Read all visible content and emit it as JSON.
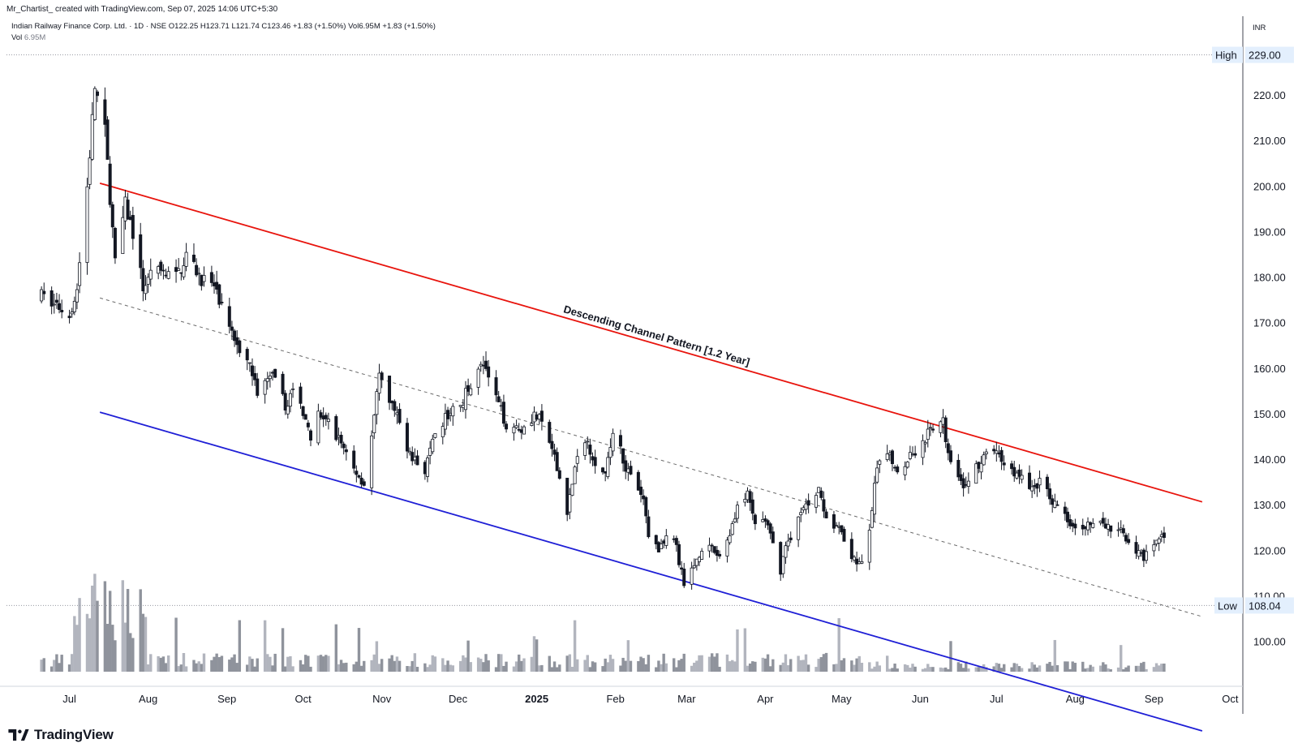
{
  "header": {
    "credit": "Mr_Chartist_ created with TradingView.com, Sep 07, 2025 14:06 UTC+5:30"
  },
  "legend": {
    "symbol": "Indian Railway Finance Corp. Ltd. · 1D · NSE",
    "open": "O122.25",
    "high": "H123.71",
    "low": "L121.74",
    "close": "C123.46",
    "change": "+1.83 (+1.50%)",
    "volume": "Vol6.95M",
    "vol_change": "+1.83 (+1.50%)",
    "vol_label": "Vol",
    "vol_value": "6.95M"
  },
  "axis": {
    "currency": "INR",
    "y_ticks": [
      "100.00",
      "110.00",
      "120.00",
      "130.00",
      "140.00",
      "150.00",
      "160.00",
      "170.00",
      "180.00",
      "190.00",
      "200.00",
      "210.00",
      "220.00"
    ],
    "x_ticks": [
      "Jul",
      "Aug",
      "Sep",
      "Oct",
      "Nov",
      "Dec",
      "2025",
      "Feb",
      "Mar",
      "Apr",
      "May",
      "Jun",
      "Jul",
      "Aug",
      "Sep",
      "Oct"
    ]
  },
  "markers": {
    "high_label": "High",
    "high_value": "229.00",
    "low_label": "Low",
    "low_value": "108.04"
  },
  "annotation": "Descending Channel Pattern [1.2 Year]",
  "watermark": "TradingView",
  "colors": {
    "upper_channel": "#e8140d",
    "lower_channel": "#1f1fd6",
    "mid_channel": "#6b6b6b",
    "candle": "#131722",
    "volume_bar": "#a9a9a9",
    "high_low_label_bg": "#e3effd"
  },
  "chart_data": {
    "type": "candlestick",
    "title": "Indian Railway Finance Corp. Ltd. · 1D · NSE",
    "ylim": [
      93.5,
      230
    ],
    "x_range": [
      "2024-06-19",
      "2025-10-06"
    ],
    "last_ohlc": {
      "open": 122.25,
      "high": 123.71,
      "low": 121.74,
      "close": 123.46
    },
    "extremes": {
      "high": 229.0,
      "low": 108.04
    },
    "price_path": [
      [
        "2024-06-20",
        176
      ],
      [
        "2024-06-26",
        174
      ],
      [
        "2024-07-01",
        172
      ],
      [
        "2024-07-04",
        178
      ],
      [
        "2024-07-08",
        200
      ],
      [
        "2024-07-11",
        222
      ],
      [
        "2024-07-15",
        212
      ],
      [
        "2024-07-17",
        198
      ],
      [
        "2024-07-19",
        183
      ],
      [
        "2024-07-23",
        196
      ],
      [
        "2024-07-26",
        190
      ],
      [
        "2024-07-30",
        178
      ],
      [
        "2024-08-05",
        182
      ],
      [
        "2024-08-12",
        180
      ],
      [
        "2024-08-16",
        185
      ],
      [
        "2024-08-22",
        180
      ],
      [
        "2024-08-27",
        178
      ],
      [
        "2024-09-02",
        168
      ],
      [
        "2024-09-09",
        163
      ],
      [
        "2024-09-13",
        155
      ],
      [
        "2024-09-19",
        158
      ],
      [
        "2024-09-24",
        152
      ],
      [
        "2024-09-27",
        155
      ],
      [
        "2024-10-02",
        150
      ],
      [
        "2024-10-04",
        143
      ],
      [
        "2024-10-07",
        150
      ],
      [
        "2024-10-11",
        148
      ],
      [
        "2024-10-15",
        145
      ],
      [
        "2024-10-21",
        138
      ],
      [
        "2024-10-25",
        135
      ],
      [
        "2024-10-28",
        145
      ],
      [
        "2024-10-31",
        158
      ],
      [
        "2024-11-05",
        152
      ],
      [
        "2024-11-08",
        148
      ],
      [
        "2024-11-13",
        140
      ],
      [
        "2024-11-18",
        138
      ],
      [
        "2024-11-22",
        145
      ],
      [
        "2024-11-27",
        150
      ],
      [
        "2024-12-02",
        152
      ],
      [
        "2024-12-06",
        157
      ],
      [
        "2024-12-10",
        162
      ],
      [
        "2024-12-13",
        158
      ],
      [
        "2024-12-17",
        152
      ],
      [
        "2024-12-20",
        148
      ],
      [
        "2024-12-26",
        147
      ],
      [
        "2024-12-31",
        150
      ],
      [
        "2025-01-03",
        148
      ],
      [
        "2025-01-06",
        144
      ],
      [
        "2025-01-10",
        136
      ],
      [
        "2025-01-13",
        129
      ],
      [
        "2025-01-16",
        138
      ],
      [
        "2025-01-20",
        145
      ],
      [
        "2025-01-24",
        140
      ],
      [
        "2025-01-28",
        136
      ],
      [
        "2025-02-01",
        150
      ],
      [
        "2025-02-04",
        140
      ],
      [
        "2025-02-07",
        136
      ],
      [
        "2025-02-12",
        131
      ],
      [
        "2025-02-14",
        124
      ],
      [
        "2025-02-18",
        120
      ],
      [
        "2025-02-21",
        124
      ],
      [
        "2025-02-25",
        121
      ],
      [
        "2025-02-28",
        112
      ],
      [
        "2025-03-04",
        117
      ],
      [
        "2025-03-07",
        121
      ],
      [
        "2025-03-11",
        120
      ],
      [
        "2025-03-14",
        119
      ],
      [
        "2025-03-18",
        124
      ],
      [
        "2025-03-21",
        130
      ],
      [
        "2025-03-25",
        132
      ],
      [
        "2025-03-28",
        126
      ],
      [
        "2025-04-01",
        127
      ],
      [
        "2025-04-04",
        121
      ],
      [
        "2025-04-07",
        116
      ],
      [
        "2025-04-09",
        121
      ],
      [
        "2025-04-14",
        127
      ],
      [
        "2025-04-17",
        130
      ],
      [
        "2025-04-22",
        134
      ],
      [
        "2025-04-25",
        128
      ],
      [
        "2025-04-29",
        125
      ],
      [
        "2025-05-02",
        123
      ],
      [
        "2025-05-06",
        118
      ],
      [
        "2025-05-09",
        117
      ],
      [
        "2025-05-12",
        125
      ],
      [
        "2025-05-15",
        138
      ],
      [
        "2025-05-19",
        142
      ],
      [
        "2025-05-23",
        138
      ],
      [
        "2025-05-28",
        141
      ],
      [
        "2025-06-02",
        144
      ],
      [
        "2025-06-06",
        147
      ],
      [
        "2025-06-10",
        148
      ],
      [
        "2025-06-12",
        142
      ],
      [
        "2025-06-16",
        137
      ],
      [
        "2025-06-19",
        134
      ],
      [
        "2025-06-23",
        138
      ],
      [
        "2025-06-27",
        141
      ],
      [
        "2025-07-01",
        142
      ],
      [
        "2025-07-04",
        139
      ],
      [
        "2025-07-09",
        137
      ],
      [
        "2025-07-14",
        134
      ],
      [
        "2025-07-18",
        135
      ],
      [
        "2025-07-22",
        132
      ],
      [
        "2025-07-25",
        130
      ],
      [
        "2025-07-29",
        127
      ],
      [
        "2025-08-01",
        126
      ],
      [
        "2025-08-06",
        126
      ],
      [
        "2025-08-11",
        126
      ],
      [
        "2025-08-14",
        125
      ],
      [
        "2025-08-20",
        124
      ],
      [
        "2025-08-25",
        120
      ],
      [
        "2025-08-28",
        118
      ],
      [
        "2025-09-02",
        122
      ],
      [
        "2025-09-05",
        123.46
      ]
    ],
    "channel": {
      "upper": [
        [
          "2024-07-13",
          200.8
        ],
        [
          "2025-09-20",
          130.8
        ]
      ],
      "middle": [
        [
          "2024-07-13",
          175.6
        ],
        [
          "2025-09-20",
          105.6
        ]
      ],
      "lower": [
        [
          "2024-07-13",
          150.5
        ],
        [
          "2025-09-20",
          80.5
        ]
      ]
    },
    "volume_note": "Volume histogram shown at bottom of price pane"
  }
}
